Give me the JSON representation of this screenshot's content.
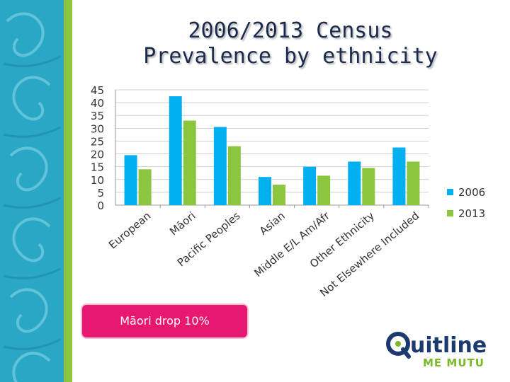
{
  "slide": {
    "title_line1": "2006/2013 Census",
    "title_line2": "Prevalence by ethnicity",
    "callout": "Māori drop 10%",
    "logo_word_main": "uitline",
    "logo_word_sub": "ME MUTU"
  },
  "colors": {
    "side_band": "#29a7c4",
    "side_edge": "#8cc63f",
    "title": "#1b2a4e",
    "callout_bg": "#e8176f",
    "logo_navy": "#1d3a6e",
    "logo_green": "#7ab929"
  },
  "chart_data": {
    "type": "bar",
    "categories": [
      "European",
      "Māori",
      "Pacific Peoples",
      "Asian",
      "Middle E/L Am/Afr",
      "Other Ethnicity",
      "Not Elsewhere Included"
    ],
    "series": [
      {
        "name": "2006",
        "color": "#00b0f0",
        "values": [
          19.5,
          42.5,
          30.5,
          11,
          15,
          17,
          22.5
        ]
      },
      {
        "name": "2013",
        "color": "#8cc63f",
        "values": [
          14,
          33,
          23,
          8,
          11.5,
          14.5,
          17
        ]
      }
    ],
    "yticks": [
      "0",
      "5",
      "10",
      "15",
      "20",
      "25",
      "30",
      "35",
      "40",
      "45"
    ],
    "ylim": [
      0,
      45
    ],
    "grid": true,
    "legend_position": "right"
  }
}
